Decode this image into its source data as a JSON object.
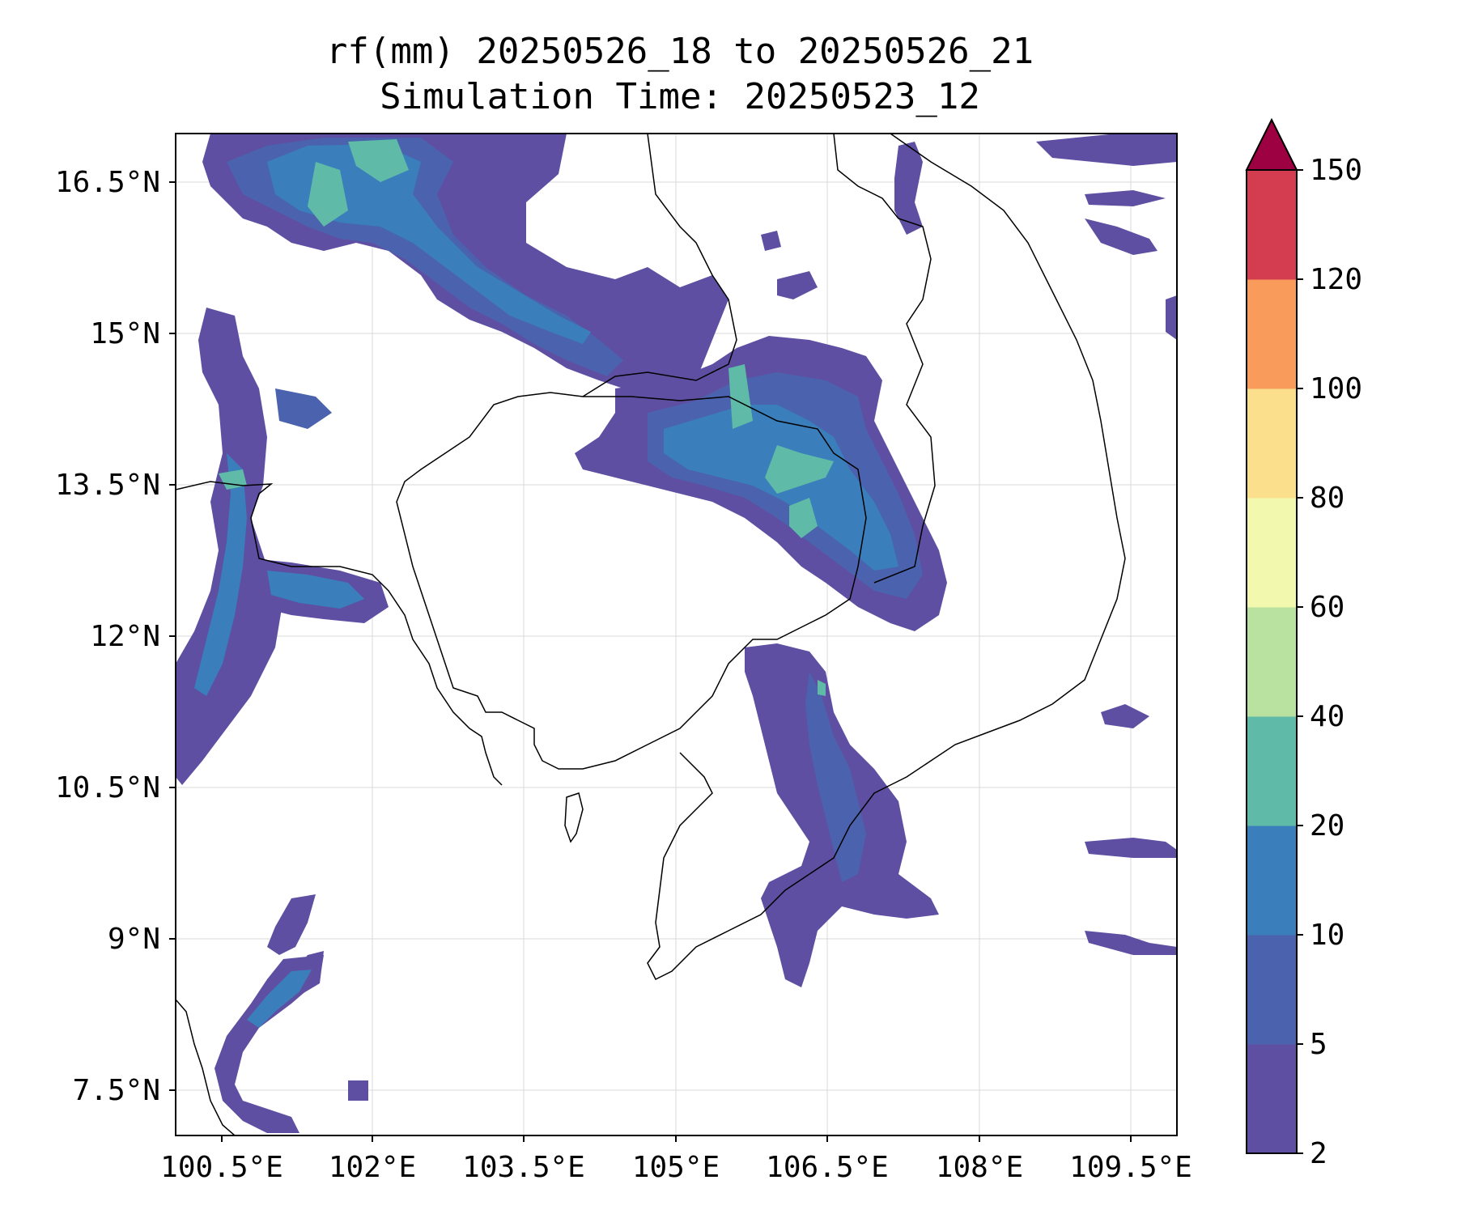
{
  "title": {
    "line1": "rf(mm) 20250526_18 to 20250526_21",
    "line2": "Simulation Time: 20250523_12"
  },
  "map": {
    "lon_labels": [
      "100.5°E",
      "102°E",
      "103.5°E",
      "105°E",
      "106.5°E",
      "108°E",
      "109.5°E"
    ],
    "lat_labels": [
      "16.5°N",
      "15°N",
      "13.5°N",
      "12°N",
      "10.5°N",
      "9°N",
      "7.5°N"
    ]
  },
  "colorbar": {
    "levels": [
      "2",
      "5",
      "10",
      "20",
      "40",
      "60",
      "80",
      "100",
      "120",
      "150"
    ],
    "colors": [
      "#5e4fa2",
      "#4b63ae",
      "#3a7fbb",
      "#5fbaa8",
      "#b9e1a0",
      "#f2f8ae",
      "#fbdf8d",
      "#f99b5b",
      "#d43d4f",
      "#9e0142"
    ],
    "extend": "max"
  },
  "rain_colors": {
    "level_2_5": "#5e4fa2",
    "level_5_10": "#4b63ae",
    "level_10_20": "#3a7fbb",
    "level_20_40": "#5fbaa8"
  }
}
